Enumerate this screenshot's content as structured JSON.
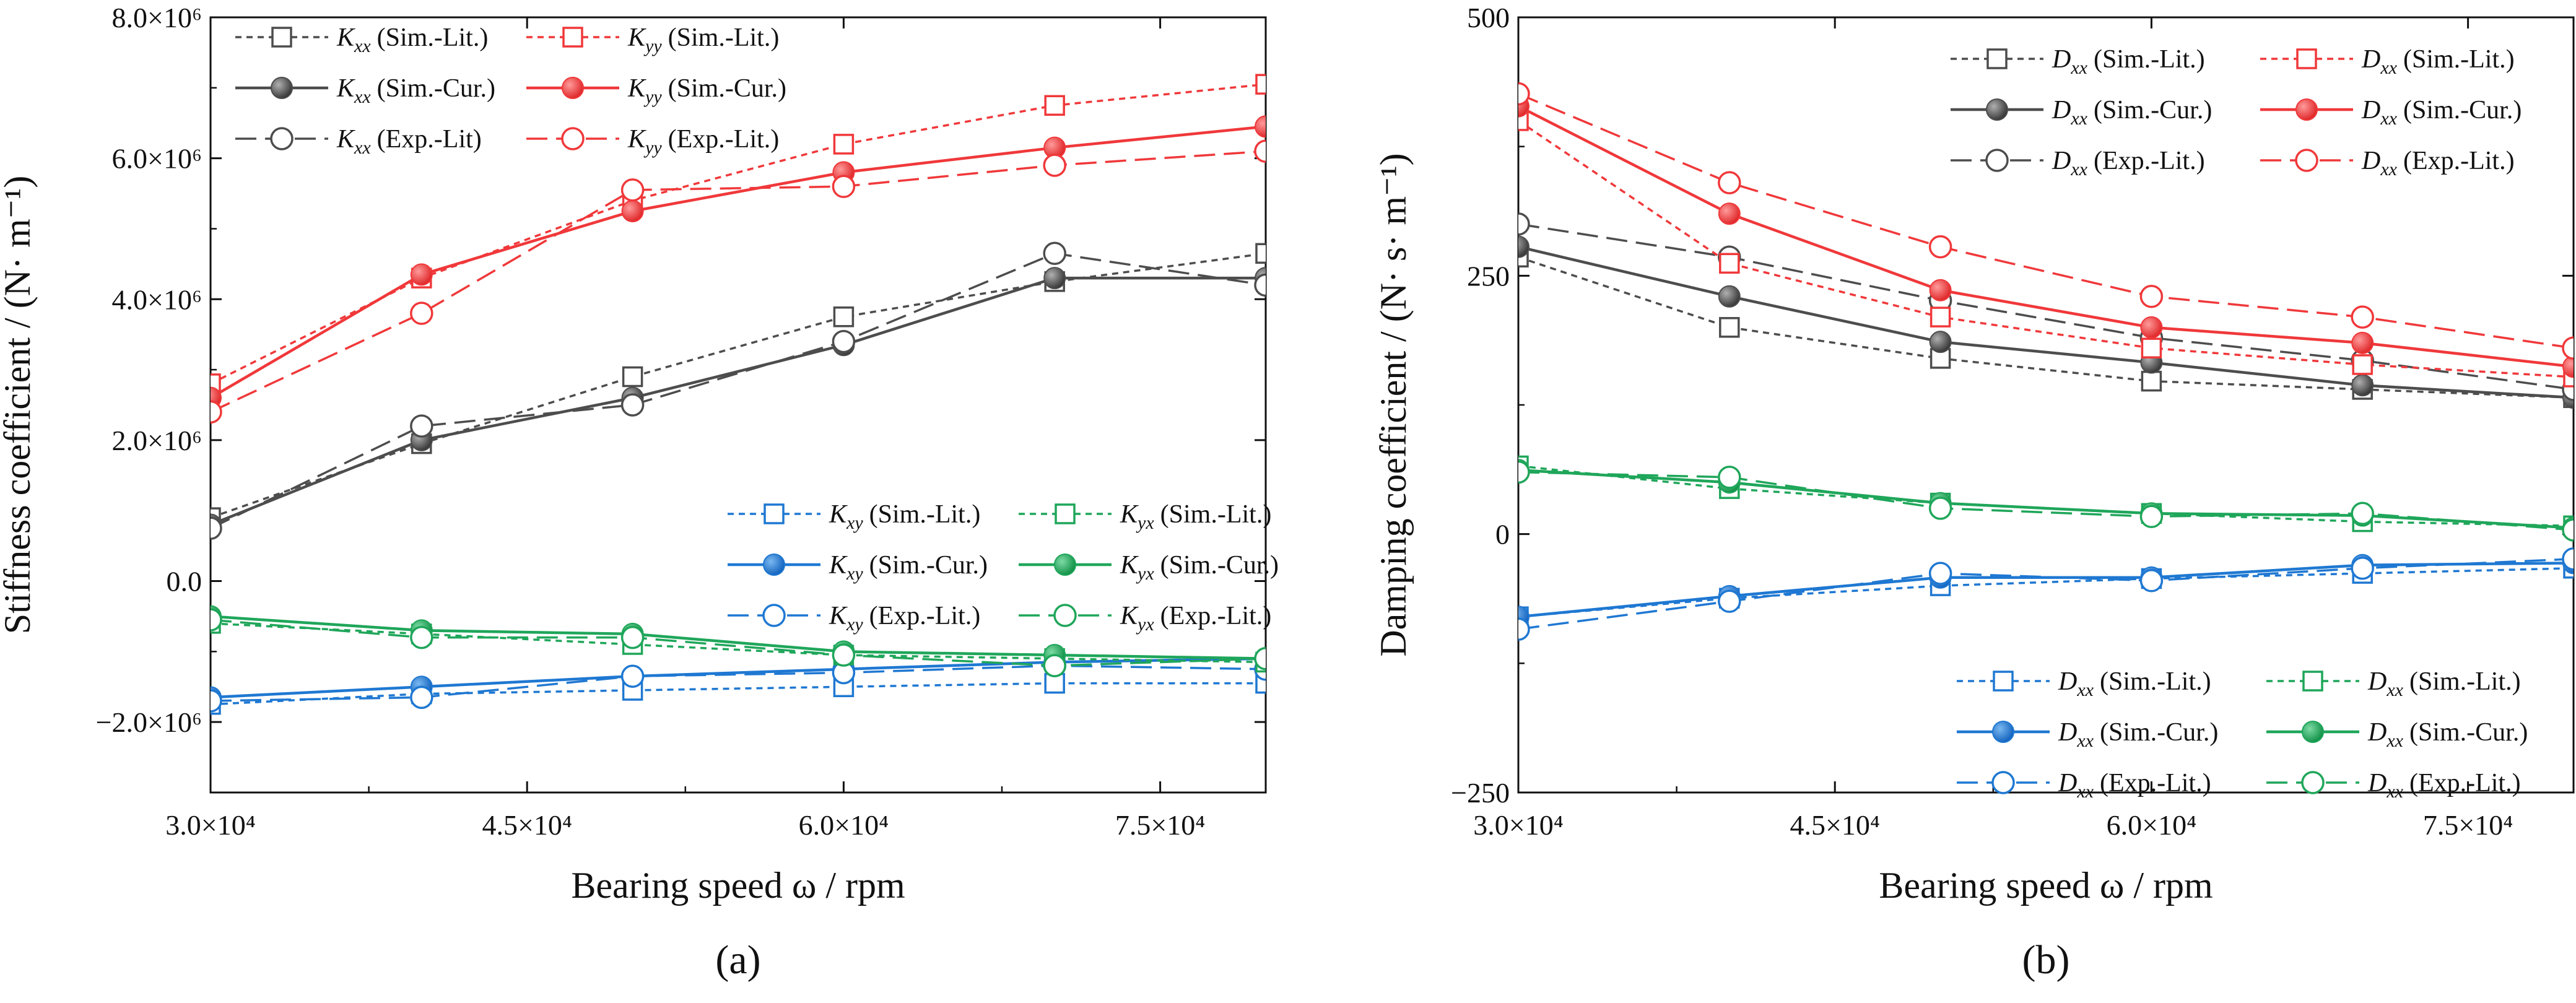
{
  "colors": {
    "gray": "#4d4d4d",
    "red": "#f0383a",
    "blue": "#1f78d2",
    "green": "#1fa65a"
  },
  "panels": [
    {
      "label": "(a)",
      "xlabel": "Bearing speed ω / rpm",
      "ylabel": "Stiffness coefficient / (N· m⁻¹)",
      "xticks": [
        "3.0×10⁴",
        "4.5×10⁴",
        "6.0×10⁴",
        "7.5×10⁴"
      ],
      "yticks": [
        "−2.0×10⁶",
        "0.0",
        "2.0×10⁶",
        "4.0×10⁶",
        "6.0×10⁶",
        "8.0×10⁶"
      ]
    },
    {
      "label": "(b)",
      "xlabel": "Bearing speed ω / rpm",
      "ylabel": "Damping coefficient / (N· s· m⁻¹)",
      "xticks": [
        "3.0×10⁴",
        "4.5×10⁴",
        "6.0×10⁴",
        "7.5×10⁴"
      ],
      "yticks": [
        "−250",
        "0",
        "250",
        "500"
      ]
    }
  ],
  "chart_data": [
    {
      "type": "line",
      "x": [
        30000,
        40000,
        50000,
        60000,
        70000,
        80000
      ],
      "xlim": [
        30000,
        80000
      ],
      "ylim": [
        -3000000,
        8000000
      ],
      "xticks": [
        30000,
        45000,
        60000,
        75000
      ],
      "yticks": [
        -2000000,
        0,
        2000000,
        4000000,
        6000000,
        8000000
      ],
      "xlabel": "Bearing speed ω / rpm",
      "ylabel": "Stiffness coefficient / (N· m⁻¹)",
      "legends": [
        {
          "position": "top-left",
          "columns": 2,
          "order": [
            0,
            3,
            1,
            4,
            2,
            5
          ]
        },
        {
          "position": "center-right",
          "columns": 2,
          "order": [
            6,
            9,
            7,
            10,
            8,
            11
          ]
        }
      ],
      "series": [
        {
          "symbol": "K",
          "subscript": "xx",
          "name": "(Sim.-Lit.)",
          "color": "gray",
          "dash": "short",
          "marker": "square-open",
          "values": [
            900000,
            1950000,
            2900000,
            3750000,
            4250000,
            4650000
          ]
        },
        {
          "symbol": "K",
          "subscript": "xx",
          "name": "(Sim.-Cur.)",
          "color": "gray",
          "dash": "solid",
          "marker": "circle-filled",
          "values": [
            800000,
            2000000,
            2600000,
            3350000,
            4300000,
            4300000
          ]
        },
        {
          "symbol": "K",
          "subscript": "xx",
          "name": "(Exp.-Lit)",
          "color": "gray",
          "dash": "long",
          "marker": "circle-open",
          "values": [
            750000,
            2200000,
            2500000,
            3400000,
            4650000,
            4200000
          ]
        },
        {
          "symbol": "K",
          "subscript": "yy",
          "name": "(Sim.-Lit.)",
          "color": "red",
          "dash": "short",
          "marker": "square-open",
          "values": [
            2800000,
            4300000,
            5400000,
            6200000,
            6750000,
            7050000
          ]
        },
        {
          "symbol": "K",
          "subscript": "yy",
          "name": "(Sim.-Cur.)",
          "color": "red",
          "dash": "solid",
          "marker": "circle-filled",
          "values": [
            2600000,
            4350000,
            5250000,
            5800000,
            6150000,
            6450000
          ]
        },
        {
          "symbol": "K",
          "subscript": "yy",
          "name": "(Exp.-Lit.)",
          "color": "red",
          "dash": "long",
          "marker": "circle-open",
          "values": [
            2400000,
            3800000,
            5550000,
            5600000,
            5900000,
            6100000
          ]
        },
        {
          "symbol": "K",
          "subscript": "xy",
          "name": "(Sim.-Lit.)",
          "color": "blue",
          "dash": "short",
          "marker": "square-open",
          "values": [
            -1750000,
            -1600000,
            -1550000,
            -1500000,
            -1450000,
            -1450000
          ]
        },
        {
          "symbol": "K",
          "subscript": "xy",
          "name": "(Sim.-Cur.)",
          "color": "blue",
          "dash": "solid",
          "marker": "circle-filled",
          "values": [
            -1650000,
            -1500000,
            -1350000,
            -1250000,
            -1150000,
            -1100000
          ]
        },
        {
          "symbol": "K",
          "subscript": "xy",
          "name": "(Exp.-Lit.)",
          "color": "blue",
          "dash": "long",
          "marker": "circle-open",
          "values": [
            -1700000,
            -1650000,
            -1350000,
            -1300000,
            -1200000,
            -1250000
          ]
        },
        {
          "symbol": "K",
          "subscript": "yx",
          "name": "(Sim.-Lit.)",
          "color": "green",
          "dash": "short",
          "marker": "square-open",
          "values": [
            -600000,
            -750000,
            -900000,
            -1050000,
            -1100000,
            -1150000
          ]
        },
        {
          "symbol": "K",
          "subscript": "yx",
          "name": "(Sim.-Cur.)",
          "color": "green",
          "dash": "solid",
          "marker": "circle-filled",
          "values": [
            -500000,
            -700000,
            -750000,
            -1000000,
            -1050000,
            -1100000
          ]
        },
        {
          "symbol": "K",
          "subscript": "yx",
          "name": "(Exp.-Lit.)",
          "color": "green",
          "dash": "long",
          "marker": "circle-open",
          "values": [
            -550000,
            -800000,
            -800000,
            -1050000,
            -1200000,
            -1100000
          ]
        }
      ]
    },
    {
      "type": "line",
      "x": [
        30000,
        40000,
        50000,
        60000,
        70000,
        80000
      ],
      "xlim": [
        30000,
        80000
      ],
      "ylim": [
        -250,
        500
      ],
      "xticks": [
        30000,
        45000,
        60000,
        75000
      ],
      "yticks": [
        -250,
        0,
        250,
        500
      ],
      "xlabel": "Bearing speed ω / rpm",
      "ylabel": "Damping coefficient / (N· s· m⁻¹)",
      "legends": [
        {
          "position": "top-right",
          "columns": 2,
          "order": [
            0,
            3,
            1,
            4,
            2,
            5
          ]
        },
        {
          "position": "bottom-right",
          "columns": 2,
          "order": [
            6,
            9,
            7,
            10,
            8,
            11
          ]
        }
      ],
      "series": [
        {
          "symbol": "D",
          "subscript": "xx",
          "name": "(Sim.-Lit.)",
          "color": "gray",
          "dash": "short",
          "marker": "square-open",
          "values": [
            268,
            200,
            170,
            148,
            140,
            132
          ]
        },
        {
          "symbol": "D",
          "subscript": "xx",
          "name": "(Sim.-Cur.)",
          "color": "gray",
          "dash": "solid",
          "marker": "circle-filled",
          "values": [
            278,
            230,
            186,
            166,
            144,
            132
          ]
        },
        {
          "symbol": "D",
          "subscript": "xx",
          "name": "(Exp.-Lit.)",
          "color": "gray",
          "dash": "long",
          "marker": "circle-open",
          "values": [
            300,
            268,
            226,
            190,
            168,
            140
          ]
        },
        {
          "symbol": "D",
          "subscript": "xx",
          "name": "(Sim.-Lit.)",
          "color": "red",
          "dash": "short",
          "marker": "square-open",
          "values": [
            400,
            262,
            210,
            180,
            164,
            152
          ]
        },
        {
          "symbol": "D",
          "subscript": "xx",
          "name": "(Sim.-Cur.)",
          "color": "red",
          "dash": "solid",
          "marker": "circle-filled",
          "values": [
            414,
            310,
            236,
            200,
            185,
            162
          ]
        },
        {
          "symbol": "D",
          "subscript": "xx",
          "name": "(Exp.-Lit.)",
          "color": "red",
          "dash": "long",
          "marker": "circle-open",
          "values": [
            426,
            340,
            278,
            230,
            210,
            180
          ]
        },
        {
          "symbol": "D",
          "subscript": "xx",
          "name": "(Sim.-Lit.)",
          "color": "blue",
          "dash": "short",
          "marker": "square-open",
          "values": [
            -80,
            -62,
            -50,
            -43,
            -38,
            -33
          ]
        },
        {
          "symbol": "D",
          "subscript": "xx",
          "name": "(Sim.-Cur.)",
          "color": "blue",
          "dash": "solid",
          "marker": "circle-filled",
          "values": [
            -80,
            -60,
            -42,
            -42,
            -30,
            -28
          ]
        },
        {
          "symbol": "D",
          "subscript": "xx",
          "name": "(Exp.-Lit.)",
          "color": "blue",
          "dash": "long",
          "marker": "circle-open",
          "values": [
            -92,
            -65,
            -38,
            -45,
            -33,
            -24
          ]
        },
        {
          "symbol": "D",
          "subscript": "xx",
          "name": "(Sim.-Lit.)",
          "color": "green",
          "dash": "short",
          "marker": "square-open",
          "values": [
            66,
            44,
            30,
            20,
            12,
            8
          ]
        },
        {
          "symbol": "D",
          "subscript": "xx",
          "name": "(Sim.-Cur.)",
          "color": "green",
          "dash": "solid",
          "marker": "circle-filled",
          "values": [
            62,
            50,
            30,
            20,
            18,
            6
          ]
        },
        {
          "symbol": "D",
          "subscript": "xx",
          "name": "(Exp.-Lit.)",
          "color": "green",
          "dash": "long",
          "marker": "circle-open",
          "values": [
            60,
            55,
            25,
            17,
            20,
            4
          ]
        }
      ]
    }
  ]
}
